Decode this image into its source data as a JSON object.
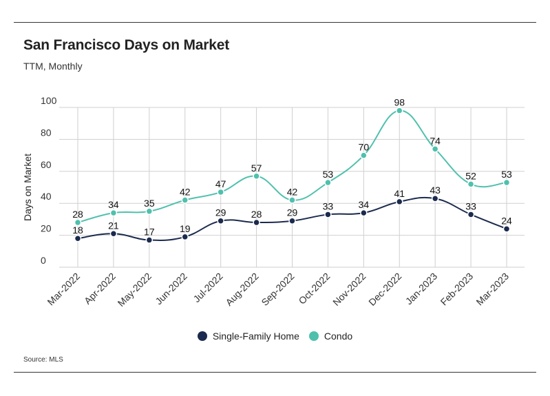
{
  "header": {
    "title": "San Francisco Days on Market",
    "subtitle": "TTM, Monthly"
  },
  "footer": {
    "source": "Source: MLS"
  },
  "chart_data": {
    "type": "line",
    "title": "San Francisco Days on Market",
    "subtitle": "TTM, Monthly",
    "xlabel": "",
    "ylabel": "Days on Market",
    "ylim": [
      0,
      100
    ],
    "yticks": [
      0,
      20,
      40,
      60,
      80,
      100
    ],
    "grid": true,
    "legend_position": "bottom",
    "categories": [
      "Mar-2022",
      "Apr-2022",
      "May-2022",
      "Jun-2022",
      "Jul-2022",
      "Aug-2022",
      "Sep-2022",
      "Oct-2022",
      "Nov-2022",
      "Dec-2022",
      "Jan-2023",
      "Feb-2023",
      "Mar-2023"
    ],
    "series": [
      {
        "name": "Single-Family Home",
        "color": "#1b2a4e",
        "values": [
          18,
          21,
          17,
          19,
          29,
          28,
          29,
          33,
          34,
          41,
          43,
          33,
          24
        ]
      },
      {
        "name": "Condo",
        "color": "#4fc0ad",
        "values": [
          28,
          34,
          35,
          42,
          47,
          57,
          42,
          53,
          70,
          98,
          74,
          52,
          53
        ]
      }
    ]
  }
}
